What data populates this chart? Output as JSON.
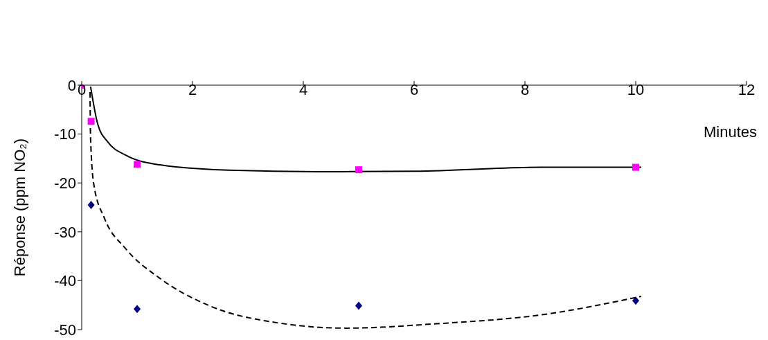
{
  "chart_data": {
    "type": "scatter",
    "xlabel": "Minutes",
    "ylabel": "Réponse (ppm NO₂)",
    "xlim": [
      0,
      12
    ],
    "xticks": [
      0,
      2,
      4,
      6,
      8,
      10,
      12
    ],
    "ylim": [
      -50,
      0
    ],
    "yticks": [
      -50,
      -40,
      -30,
      -20,
      -10,
      0
    ],
    "grid": false,
    "legend": false,
    "series": [
      {
        "marker": "square",
        "color": "#ff00ff",
        "x": [
          0,
          0.17,
          1,
          5,
          10
        ],
        "values": [
          0,
          -7.4,
          -16.2,
          -17.3,
          -16.8
        ]
      },
      {
        "marker": "diamond",
        "color": "#000080",
        "x": [
          0.17,
          1,
          5,
          10
        ],
        "values": [
          -24.5,
          -45.8,
          -45.1,
          -44.1
        ]
      },
      {
        "type": "line",
        "line_style": "solid",
        "color": "#000000",
        "x": [
          0.16,
          0.29,
          0.47,
          0.79,
          1.41,
          2.66,
          4.28,
          6.03,
          8.28,
          10.1
        ],
        "values": [
          -0.3,
          -8,
          -11.6,
          -14.3,
          -16.3,
          -17.4,
          -17.7,
          -17.6,
          -16.8,
          -16.8
        ]
      },
      {
        "type": "line",
        "line_style": "dashed",
        "color": "#000000",
        "x": [
          0.15,
          0.16,
          0.22,
          0.41,
          0.79,
          1.41,
          2.28,
          3.53,
          4.78,
          6.4,
          8.28,
          10.1
        ],
        "values": [
          -1.4,
          -10.9,
          -20.4,
          -27.2,
          -33.4,
          -39.5,
          -45,
          -48.6,
          -49.7,
          -48.8,
          -47,
          -43.2
        ]
      }
    ]
  }
}
